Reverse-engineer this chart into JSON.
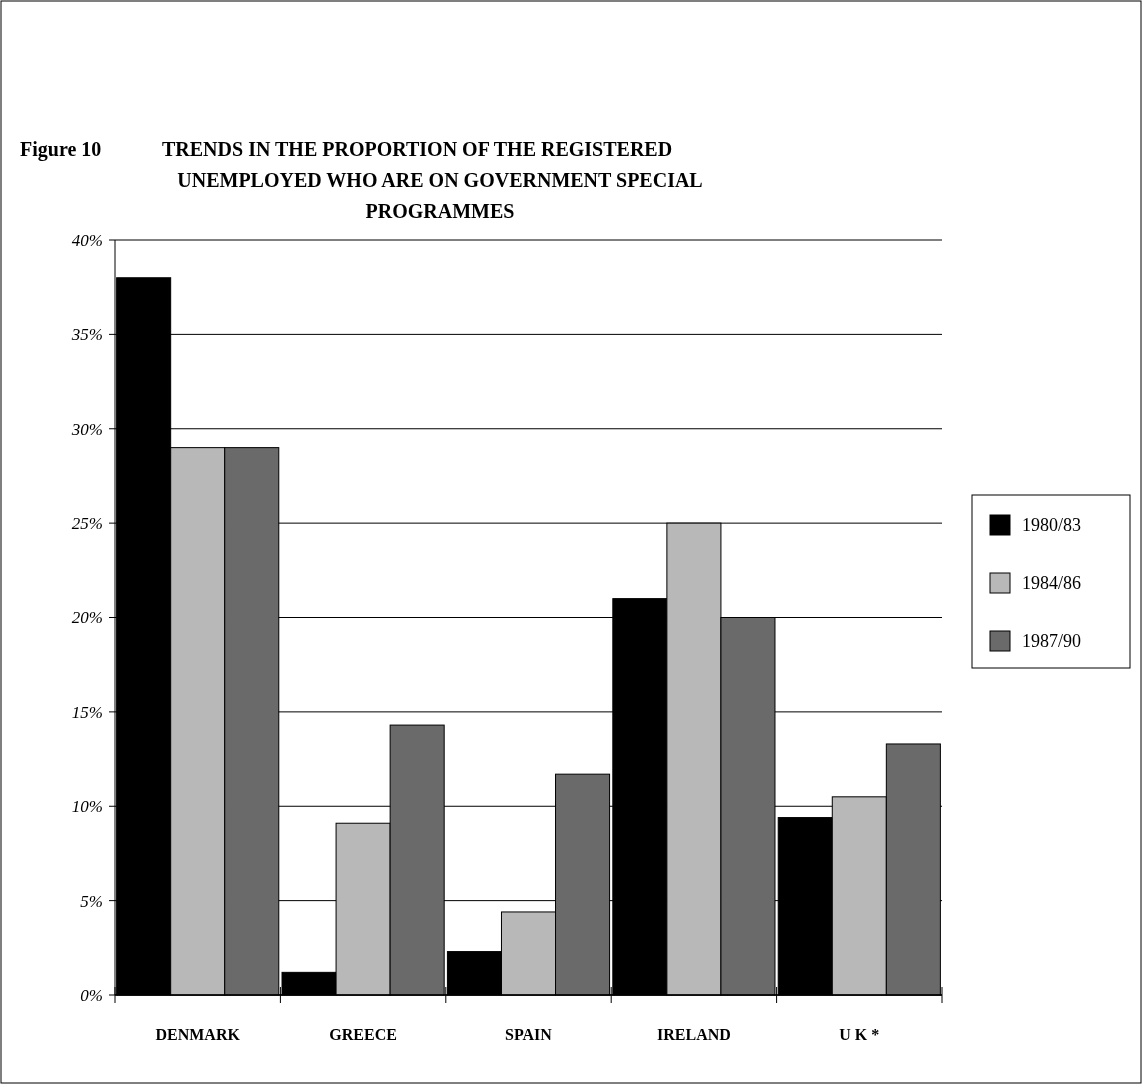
{
  "chart_data": {
    "type": "bar",
    "title": "TRENDS IN THE PROPORTION OF THE REGISTERED UNEMPLOYED WHO ARE ON GOVERNMENT SPECIAL PROGRAMMES",
    "annotations": [
      "Figure 10"
    ],
    "categories": [
      "DENMARK",
      "GREECE",
      "SPAIN",
      "IRELAND",
      "U K *"
    ],
    "series": [
      {
        "name": "1980/83",
        "color": "#000000",
        "values": [
          38,
          1.2,
          2.3,
          21,
          9.4
        ]
      },
      {
        "name": "1984/86",
        "color": "#b8b8b8",
        "values": [
          29,
          9.1,
          4.4,
          25,
          10.5
        ]
      },
      {
        "name": "1987/90",
        "color": "#6a6a6a",
        "values": [
          29,
          14.3,
          11.7,
          20,
          13.3
        ]
      }
    ],
    "ylim": [
      0,
      40
    ],
    "yticks": [
      {
        "value": 0,
        "label": "0%"
      },
      {
        "value": 5,
        "label": "5%"
      },
      {
        "value": 10,
        "label": "10%"
      },
      {
        "value": 15,
        "label": "15%"
      },
      {
        "value": 20,
        "label": "20%"
      },
      {
        "value": 25,
        "label": "25%"
      },
      {
        "value": 30,
        "label": "30%"
      },
      {
        "value": 35,
        "label": "35%"
      },
      {
        "value": 40,
        "label": "40%"
      }
    ],
    "grid": "y",
    "legend": "right"
  }
}
